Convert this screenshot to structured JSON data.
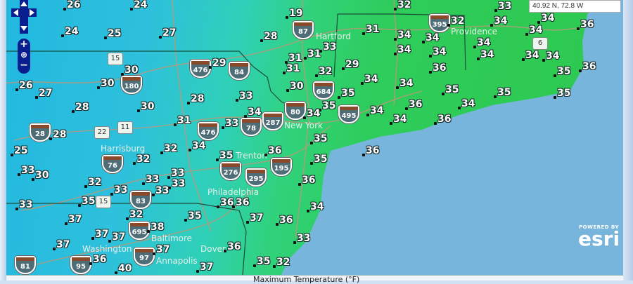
{
  "map": {
    "coordinate_readout": "40.92 N, 72.8 W",
    "legend_title": "Maximum Temperature (°F)",
    "temperatures": [
      26,
      24,
      32,
      19,
      24,
      25,
      27,
      28,
      33,
      31,
      34,
      34,
      32,
      33,
      34,
      34,
      34,
      34,
      36,
      31,
      31,
      29,
      31,
      32,
      34,
      34,
      36,
      34,
      34,
      34,
      35,
      36,
      30,
      29,
      30,
      30,
      33,
      34,
      35,
      35,
      34,
      35,
      35,
      35,
      36,
      34,
      34,
      34,
      34,
      36,
      26,
      27,
      28,
      30,
      28,
      31,
      28,
      25,
      32,
      32,
      34,
      33,
      30,
      32,
      33,
      33,
      33,
      35,
      33,
      32,
      37,
      37,
      38,
      37,
      36,
      37,
      37,
      40,
      37,
      35,
      33,
      34,
      36,
      35,
      35,
      36,
      35,
      33,
      33,
      36,
      36,
      36,
      34,
      37,
      36,
      33,
      36,
      35,
      32
    ],
    "cities": [
      "Hartford",
      "Providence",
      "New York",
      "Trenton",
      "Philadelphia",
      "Harrisburg",
      "Baltimore",
      "Annapolis",
      "Washington",
      "Dover"
    ],
    "interstates": [
      "87",
      "684",
      "80",
      "495",
      "287",
      "78",
      "476",
      "476",
      "84",
      "180",
      "28",
      "76",
      "276",
      "295",
      "195",
      "83",
      "695",
      "97",
      "81",
      "95",
      "395"
    ],
    "us_routes": [
      "15",
      "22",
      "11",
      "15",
      "6"
    ],
    "colors": {
      "cold": "#22b8e0",
      "mild": "#30d27c",
      "warm": "#2dc84e",
      "ocean": "#78b5dc"
    }
  },
  "controls": {
    "zoom_in": "+",
    "zoom_out": "−",
    "pan_up": "▲",
    "pan_down": "▼",
    "pan_left": "◀",
    "pan_right": "▶",
    "globe_icon": "globe"
  },
  "attribution": {
    "powered_by": "POWERED BY",
    "logo": "esri"
  }
}
